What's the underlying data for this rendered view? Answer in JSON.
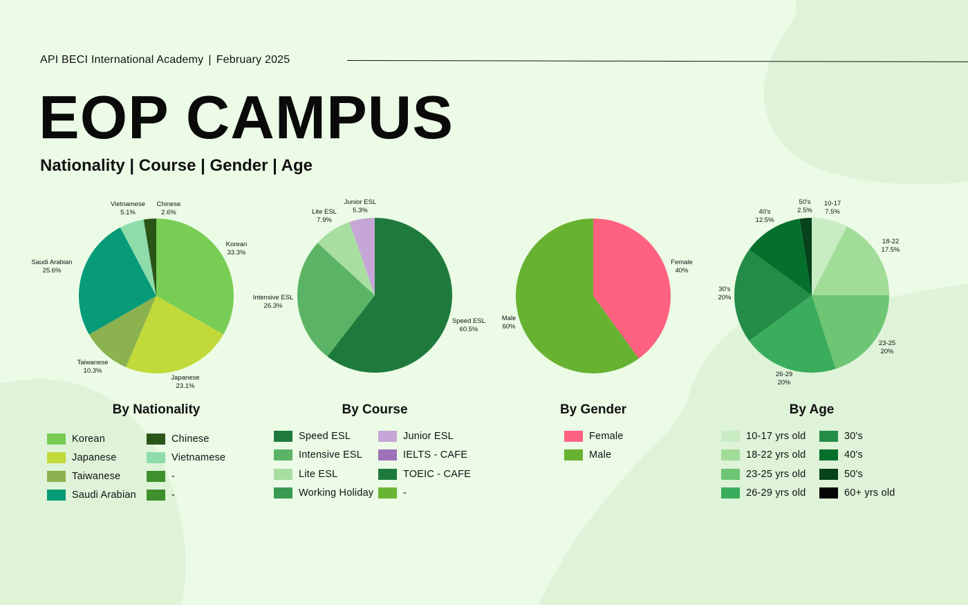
{
  "header": {
    "org": "API BECI International Academy",
    "separator": "|",
    "date": "February 2025",
    "title": "EOP CAMPUS",
    "subtitle": "Nationality | Course | Gender | Age"
  },
  "chart_data": [
    {
      "type": "pie",
      "title": "By Nationality",
      "slices": [
        {
          "label": "Korean",
          "pct_text": "33.3%",
          "value": 33.3,
          "color": "#78cd55"
        },
        {
          "label": "Japanese",
          "pct_text": "23.1%",
          "value": 23.1,
          "color": "#c2d93a"
        },
        {
          "label": "Taiwanese",
          "pct_text": "10.3%",
          "value": 10.3,
          "color": "#8bb24e"
        },
        {
          "label": "Saudi Arabian",
          "pct_text": "25.6%",
          "value": 25.6,
          "color": "#079b78"
        },
        {
          "label": "Vietnamese",
          "pct_text": "5.1%",
          "value": 5.1,
          "color": "#8fdcab"
        },
        {
          "label": "Chinese",
          "pct_text": "2.6%",
          "value": 2.6,
          "color": "#2b5518"
        }
      ],
      "legend": [
        {
          "label": "Korean",
          "color": "#78cd55"
        },
        {
          "label": "Japanese",
          "color": "#c2d93a"
        },
        {
          "label": "Taiwanese",
          "color": "#8bb24e"
        },
        {
          "label": "Saudi Arabian",
          "color": "#079b78"
        },
        {
          "label": "Chinese",
          "color": "#2b5518"
        },
        {
          "label": "Vietnamese",
          "color": "#8fdcab"
        },
        {
          "label": "-",
          "color": "#3f8f2c"
        },
        {
          "label": "-",
          "color": "#3f8f2c"
        }
      ]
    },
    {
      "type": "pie",
      "title": "By Course",
      "slices": [
        {
          "label": "Speed ESL",
          "pct_text": "60.5%",
          "value": 60.5,
          "color": "#1e7a3c"
        },
        {
          "label": "Intensive ESL",
          "pct_text": "26.3%",
          "value": 26.3,
          "color": "#5bb465"
        },
        {
          "label": "Lite ESL",
          "pct_text": "7.9%",
          "value": 7.9,
          "color": "#a8dea0"
        },
        {
          "label": "Junior ESL",
          "pct_text": "5.3%",
          "value": 5.3,
          "color": "#c6a6d6"
        }
      ],
      "legend": [
        {
          "label": "Speed ESL",
          "color": "#1e7a3c"
        },
        {
          "label": "Intensive ESL",
          "color": "#5bb465"
        },
        {
          "label": "Lite ESL",
          "color": "#a8dea0"
        },
        {
          "label": "Working Holiday",
          "color": "#3a9a50"
        },
        {
          "label": "Junior ESL",
          "color": "#c6a6d6"
        },
        {
          "label": "IELTS - CAFE",
          "color": "#9d72b8"
        },
        {
          "label": "TOEIC - CAFE",
          "color": "#1e7a3c"
        },
        {
          "label": "-",
          "color": "#6ab534"
        }
      ]
    },
    {
      "type": "pie",
      "title": "By Gender",
      "slices": [
        {
          "label": "Female",
          "pct_text": "40%",
          "value": 40,
          "color": "#ff6180"
        },
        {
          "label": "Male",
          "pct_text": "60%",
          "value": 60,
          "color": "#67b230"
        }
      ],
      "legend": [
        {
          "label": "Female",
          "color": "#ff6180"
        },
        {
          "label": "Male",
          "color": "#67b230"
        }
      ]
    },
    {
      "type": "pie",
      "title": "By Age",
      "slices": [
        {
          "label": "10-17",
          "pct_text": "7.5%",
          "value": 7.5,
          "color": "#c9ecc4"
        },
        {
          "label": "18-22",
          "pct_text": "17.5%",
          "value": 17.5,
          "color": "#a2dc99"
        },
        {
          "label": "23-25",
          "pct_text": "20%",
          "value": 20,
          "color": "#6ec574"
        },
        {
          "label": "26-29",
          "pct_text": "20%",
          "value": 20,
          "color": "#3aad5c"
        },
        {
          "label": "30's",
          "pct_text": "20%",
          "value": 20,
          "color": "#238c46"
        },
        {
          "label": "40's",
          "pct_text": "12.5%",
          "value": 12.5,
          "color": "#04702c"
        },
        {
          "label": "50's",
          "pct_text": "2.5%",
          "value": 2.5,
          "color": "#06421b"
        }
      ],
      "legend": [
        {
          "label": "10-17 yrs old",
          "color": "#c9ecc4"
        },
        {
          "label": "18-22 yrs old",
          "color": "#a2dc99"
        },
        {
          "label": "23-25 yrs old",
          "color": "#6ec574"
        },
        {
          "label": "26-29 yrs old",
          "color": "#3aad5c"
        },
        {
          "label": "30's",
          "color": "#238c46"
        },
        {
          "label": "40's",
          "color": "#04702c"
        },
        {
          "label": "50's",
          "color": "#06421b"
        },
        {
          "label": "60+ yrs old",
          "color": "#050505"
        }
      ]
    }
  ]
}
